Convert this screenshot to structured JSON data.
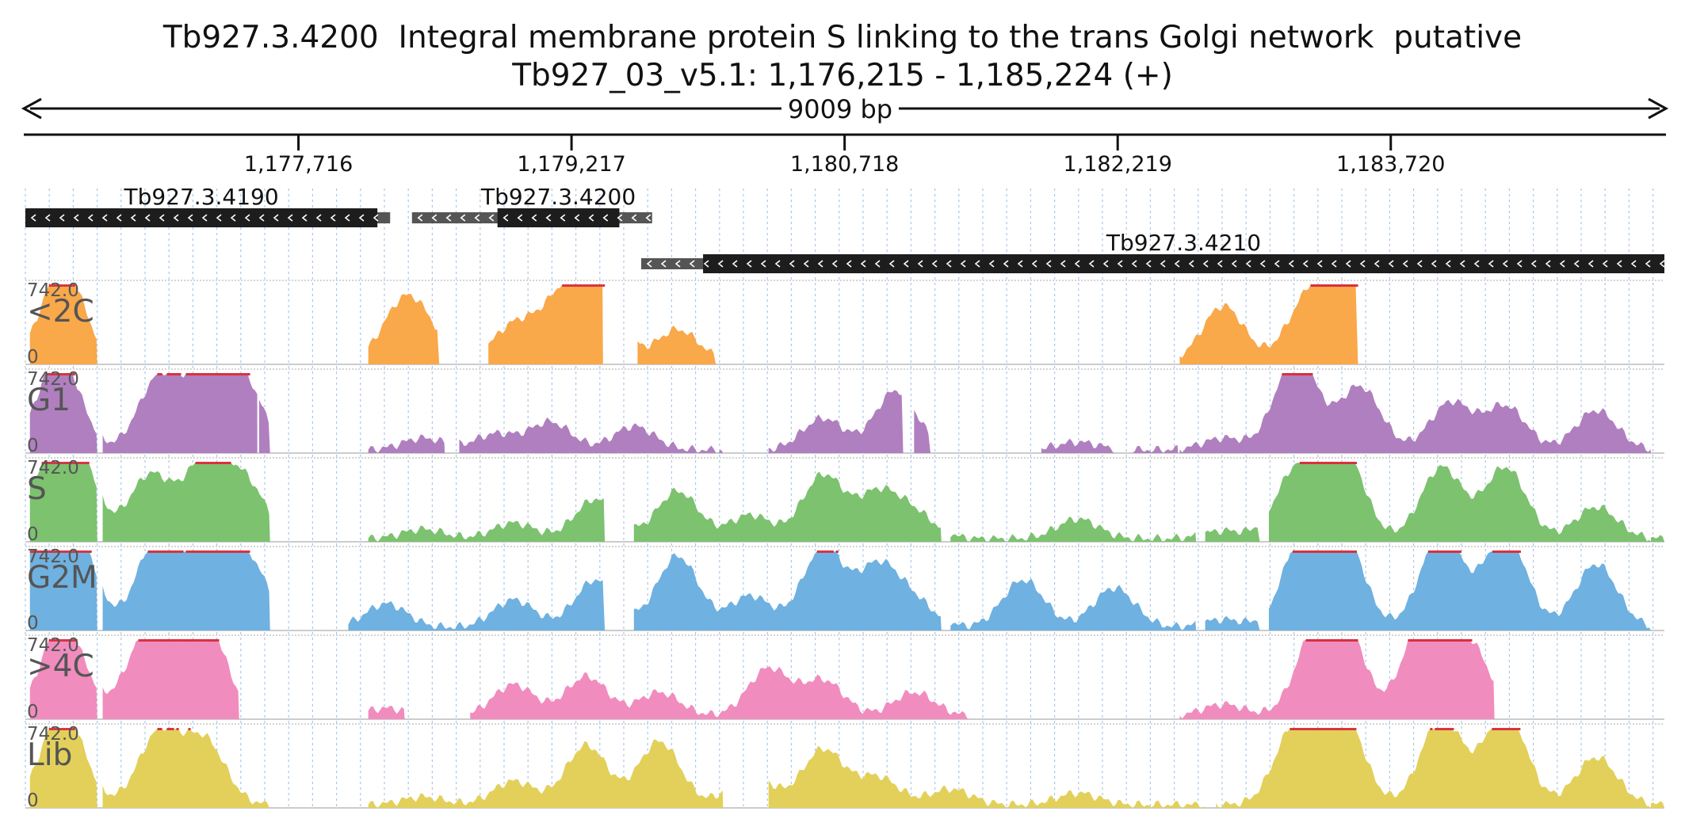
{
  "header": {
    "title": "Tb927.3.4200  Integral membrane protein S linking to the trans Golgi network  putative",
    "locus": "Tb927_03_v5.1: 1,176,215 - 1,185,224 (+)"
  },
  "ruler": {
    "span_label": "9009 bp",
    "start": 1176215,
    "end": 1185224,
    "ticks": [
      {
        "pos": 1177716,
        "label": "1,177,716"
      },
      {
        "pos": 1179217,
        "label": "1,179,217"
      },
      {
        "pos": 1180718,
        "label": "1,180,718"
      },
      {
        "pos": 1182219,
        "label": "1,182,219"
      },
      {
        "pos": 1183720,
        "label": "1,183,720"
      }
    ]
  },
  "genes": [
    {
      "id": "Tb927.3.4190",
      "label": "Tb927.3.4190",
      "start": 1176215,
      "end": 1178220,
      "cds_start": 1176215,
      "cds_end": 1178150,
      "row": 0,
      "strand": "-"
    },
    {
      "id": "Tb927.3.4200",
      "label": "Tb927.3.4200",
      "start": 1178340,
      "end": 1179660,
      "cds_start": 1178810,
      "cds_end": 1179480,
      "row": 0,
      "strand": "-"
    },
    {
      "id": "Tb927.3.4210",
      "label": "Tb927.3.4210",
      "start": 1179600,
      "end": 1185224,
      "cds_start": 1179940,
      "cds_end": 1185224,
      "row": 1,
      "strand": "-"
    }
  ],
  "tracks_common": {
    "max_label": "742.0",
    "min_label": "0",
    "max": 742.0,
    "overflow_color": "#d9303c"
  },
  "tracks": [
    {
      "name": "<2C",
      "color": "#f9a84a",
      "segments": [
        [
          1176240,
          1176610
        ],
        [
          1178100,
          1178490
        ],
        [
          1178760,
          1179390
        ],
        [
          1179580,
          1180010
        ],
        [
          1182560,
          1183540
        ]
      ],
      "peaks": [
        [
          1176420,
          1.2
        ],
        [
          1178280,
          0.6
        ],
        [
          1178400,
          0.35
        ],
        [
          1178900,
          0.45
        ],
        [
          1179150,
          0.7
        ],
        [
          1179360,
          1.2
        ],
        [
          1179800,
          0.4
        ],
        [
          1182800,
          0.7
        ],
        [
          1183250,
          0.65
        ],
        [
          1183450,
          1.2
        ]
      ]
    },
    {
      "name": "G1",
      "color": "#b07fbf",
      "segments": [
        [
          1176240,
          1176610
        ],
        [
          1176640,
          1177490
        ],
        [
          1177500,
          1177560
        ],
        [
          1178100,
          1178520
        ],
        [
          1178600,
          1180050
        ],
        [
          1180300,
          1181040
        ],
        [
          1181100,
          1181190
        ],
        [
          1181800,
          1182200
        ],
        [
          1182300,
          1182550
        ],
        [
          1182560,
          1185150
        ]
      ],
      "peaks": [
        [
          1176400,
          1.2
        ],
        [
          1176950,
          0.9
        ],
        [
          1177200,
          0.85
        ],
        [
          1177400,
          0.9
        ],
        [
          1178400,
          0.15
        ],
        [
          1178800,
          0.2
        ],
        [
          1179100,
          0.35
        ],
        [
          1179560,
          0.3
        ],
        [
          1180600,
          0.4
        ],
        [
          1181000,
          0.75
        ],
        [
          1182000,
          0.1
        ],
        [
          1182800,
          0.15
        ],
        [
          1183200,
          1.2
        ],
        [
          1183550,
          0.8
        ],
        [
          1184050,
          0.6
        ],
        [
          1184350,
          0.55
        ],
        [
          1184850,
          0.5
        ]
      ]
    },
    {
      "name": "S",
      "color": "#7cc26f",
      "segments": [
        [
          1176240,
          1176610
        ],
        [
          1176640,
          1177560
        ],
        [
          1178100,
          1179400
        ],
        [
          1179560,
          1181250
        ],
        [
          1181300,
          1182650
        ],
        [
          1182700,
          1183000
        ],
        [
          1183050,
          1185150
        ],
        [
          1185150,
          1185224
        ]
      ],
      "peaks": [
        [
          1176300,
          0.6
        ],
        [
          1176480,
          1.2
        ],
        [
          1176900,
          0.8
        ],
        [
          1177200,
          0.95
        ],
        [
          1177420,
          0.7
        ],
        [
          1178400,
          0.12
        ],
        [
          1178900,
          0.2
        ],
        [
          1179350,
          0.5
        ],
        [
          1179800,
          0.6
        ],
        [
          1180200,
          0.3
        ],
        [
          1180600,
          0.8
        ],
        [
          1180900,
          0.55
        ],
        [
          1181100,
          0.3
        ],
        [
          1182000,
          0.25
        ],
        [
          1182800,
          0.1
        ],
        [
          1183200,
          0.85
        ],
        [
          1183450,
          1.2
        ],
        [
          1184000,
          0.9
        ],
        [
          1184350,
          0.9
        ],
        [
          1184850,
          0.4
        ]
      ]
    },
    {
      "name": "G2M",
      "color": "#6fb1e0",
      "segments": [
        [
          1176240,
          1176610
        ],
        [
          1176640,
          1177560
        ],
        [
          1177990,
          1179400
        ],
        [
          1179560,
          1181250
        ],
        [
          1181300,
          1182650
        ],
        [
          1182700,
          1183000
        ],
        [
          1183050,
          1185150
        ]
      ],
      "peaks": [
        [
          1176300,
          1.1
        ],
        [
          1176480,
          1.2
        ],
        [
          1176950,
          1.2
        ],
        [
          1177250,
          1.2
        ],
        [
          1177450,
          0.7
        ],
        [
          1178200,
          0.3
        ],
        [
          1178900,
          0.35
        ],
        [
          1179350,
          0.6
        ],
        [
          1179800,
          0.9
        ],
        [
          1180200,
          0.4
        ],
        [
          1180600,
          1.0
        ],
        [
          1180900,
          0.75
        ],
        [
          1181100,
          0.3
        ],
        [
          1181700,
          0.6
        ],
        [
          1182200,
          0.5
        ],
        [
          1182800,
          0.1
        ],
        [
          1183250,
          1.2
        ],
        [
          1183450,
          1.2
        ],
        [
          1184000,
          1.2
        ],
        [
          1184350,
          1.2
        ],
        [
          1184850,
          0.8
        ]
      ]
    },
    {
      "name": ">4C",
      "color": "#f18cbf",
      "segments": [
        [
          1176240,
          1176610
        ],
        [
          1176640,
          1177390
        ],
        [
          1178100,
          1178300
        ],
        [
          1178660,
          1181400
        ],
        [
          1182560,
          1184290
        ]
      ],
      "peaks": [
        [
          1176420,
          1.2
        ],
        [
          1176800,
          0.3
        ],
        [
          1176950,
          1.2
        ],
        [
          1177200,
          1.2
        ],
        [
          1178200,
          0.1
        ],
        [
          1178900,
          0.4
        ],
        [
          1179300,
          0.5
        ],
        [
          1179700,
          0.3
        ],
        [
          1180300,
          0.6
        ],
        [
          1180600,
          0.45
        ],
        [
          1181100,
          0.3
        ],
        [
          1182800,
          0.15
        ],
        [
          1183300,
          0.8
        ],
        [
          1183450,
          1.2
        ],
        [
          1183900,
          1.2
        ],
        [
          1184150,
          0.9
        ]
      ]
    },
    {
      "name": "Lib",
      "color": "#e2d05a",
      "segments": [
        [
          1176240,
          1176610
        ],
        [
          1176640,
          1177560
        ],
        [
          1178100,
          1180050
        ],
        [
          1180300,
          1182700
        ],
        [
          1182760,
          1185150
        ],
        [
          1185150,
          1185224
        ]
      ],
      "peaks": [
        [
          1176420,
          1.2
        ],
        [
          1176950,
          0.9
        ],
        [
          1177200,
          0.8
        ],
        [
          1178400,
          0.1
        ],
        [
          1178900,
          0.3
        ],
        [
          1179300,
          0.75
        ],
        [
          1179700,
          0.8
        ],
        [
          1180200,
          0.4
        ],
        [
          1180600,
          0.7
        ],
        [
          1180900,
          0.35
        ],
        [
          1181300,
          0.2
        ],
        [
          1182000,
          0.15
        ],
        [
          1183200,
          1.0
        ],
        [
          1183450,
          1.2
        ],
        [
          1184000,
          1.1
        ],
        [
          1184350,
          1.2
        ],
        [
          1184850,
          0.6
        ]
      ]
    }
  ]
}
